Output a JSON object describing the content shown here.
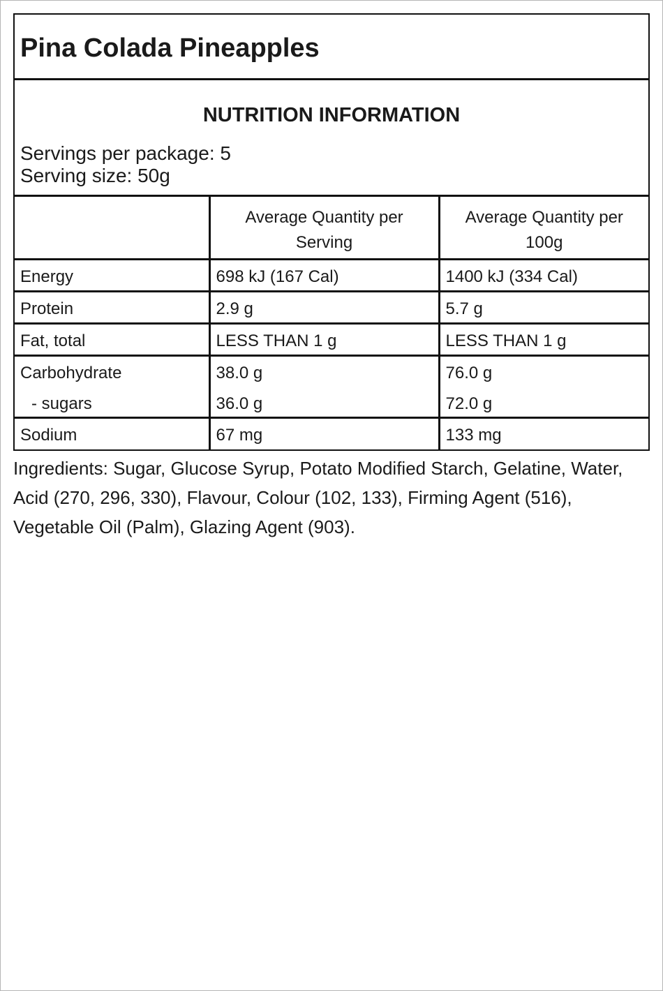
{
  "product": {
    "title": "Pina Colada Pineapples"
  },
  "info": {
    "heading": "NUTRITION INFORMATION",
    "servings_per_package": "Servings per package: 5",
    "serving_size": "Serving size: 50g"
  },
  "table": {
    "headers": [
      "",
      "Average Quantity per Serving",
      "Average Quantity per 100g"
    ],
    "rows": [
      {
        "name": "Energy",
        "per_serving": "698 kJ (167 Cal)",
        "per_100g": "1400 kJ (334 Cal)"
      },
      {
        "name": "Protein",
        "per_serving": "2.9 g",
        "per_100g": "5.7 g"
      },
      {
        "name": "Fat, total",
        "per_serving": "LESS THAN 1 g",
        "per_100g": "LESS THAN 1 g"
      },
      {
        "name": "Carbohydrate",
        "per_serving": "38.0 g",
        "per_100g": "76.0 g",
        "sub_name": "- sugars",
        "sub_per_serving": "36.0 g",
        "sub_per_100g": "72.0 g"
      },
      {
        "name": "Sodium",
        "per_serving": "67 mg",
        "per_100g": "133 mg"
      }
    ]
  },
  "ingredients": "Ingredients: Sugar, Glucose Syrup, Potato Modified Starch, Gelatine, Water, Acid (270, 296, 330), Flavour, Colour (102, 133), Firming Agent (516), Vegetable Oil (Palm), Glazing Agent (903)."
}
